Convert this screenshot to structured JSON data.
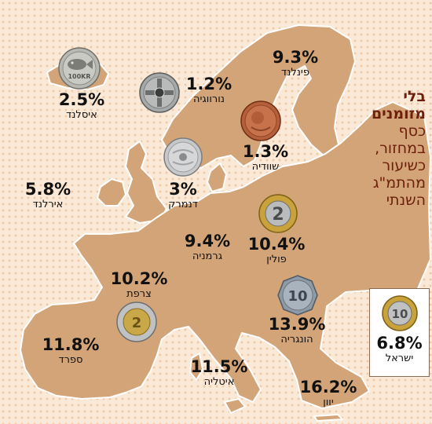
{
  "headline": {
    "bold_line1": "בלי",
    "bold_line2": "מזומנים",
    "lines": [
      "כסף",
      "במחזור,",
      "כשיעור",
      "מהתמ\"ג",
      "השנתי"
    ]
  },
  "countries": {
    "iceland": {
      "percent": "2.5%",
      "name": "איסלנד"
    },
    "norway": {
      "percent": "1.2%",
      "name": "נורווגיה"
    },
    "finland": {
      "percent": "9.3%",
      "name": "פינלנד"
    },
    "sweden": {
      "percent": "1.3%",
      "name": "שוודיה"
    },
    "ireland": {
      "percent": "5.8%",
      "name": "אירלנד"
    },
    "denmark": {
      "percent": "3%",
      "name": "דנמרק"
    },
    "germany": {
      "percent": "9.4%",
      "name": "גרמניה"
    },
    "poland": {
      "percent": "10.4%",
      "name": "פולין"
    },
    "france": {
      "percent": "10.2%",
      "name": "צרפת"
    },
    "hungary": {
      "percent": "13.9%",
      "name": "הונגריה"
    },
    "spain": {
      "percent": "11.8%",
      "name": "ספרד"
    },
    "italy": {
      "percent": "11.5%",
      "name": "איטליה"
    },
    "greece": {
      "percent": "16.2%",
      "name": "יוון"
    },
    "israel": {
      "percent": "6.8%",
      "name": "ישראל"
    }
  },
  "coin_texts": {
    "iceland": "100KR",
    "poland": "2",
    "hungary": "10",
    "spain": "2",
    "israel": "10"
  },
  "colors": {
    "land": "#d2a478",
    "sea_dots": "#efc9a6",
    "headline": "#6d1f0b"
  }
}
